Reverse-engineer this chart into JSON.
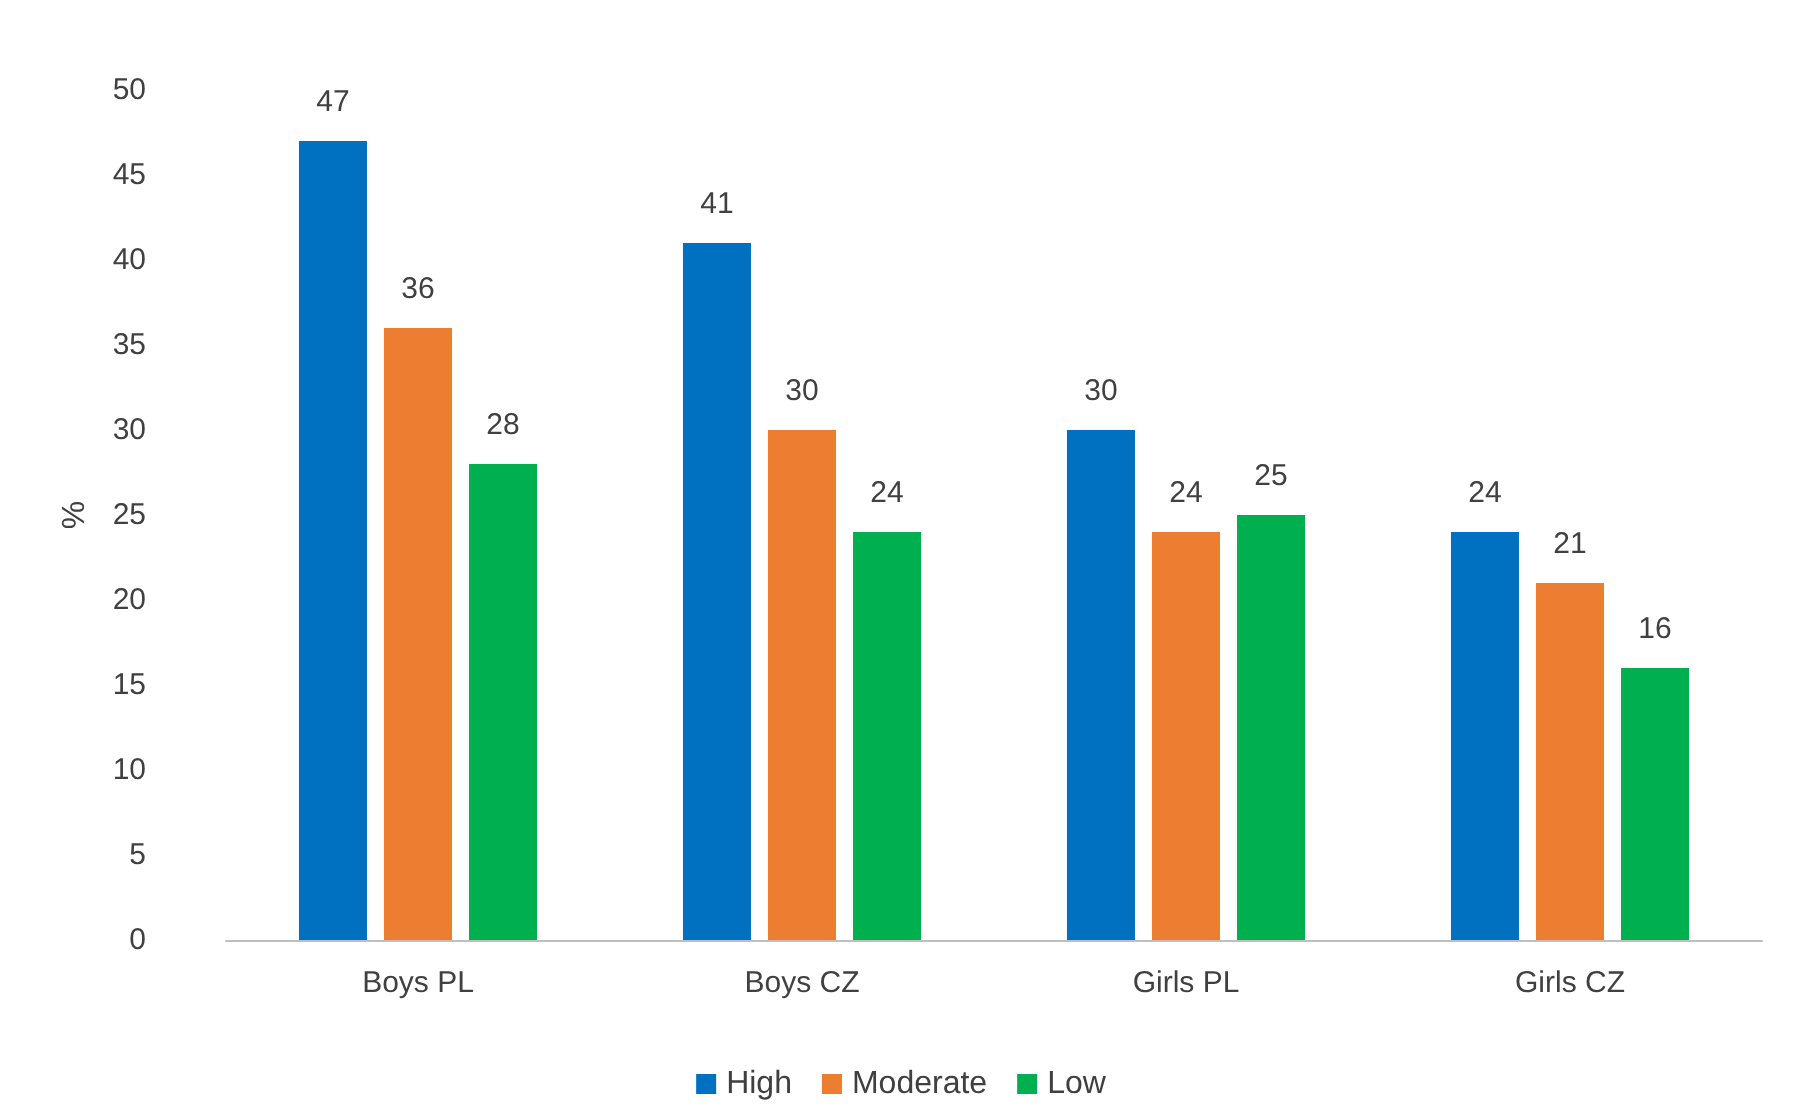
{
  "chart_data": {
    "type": "bar",
    "ylabel": "%",
    "categories": [
      "Boys PL",
      "Boys CZ",
      "Girls PL",
      "Girls CZ"
    ],
    "series": [
      {
        "name": "High",
        "color": "#0070c0",
        "values": [
          47,
          41,
          30,
          24
        ]
      },
      {
        "name": "Moderate",
        "color": "#ed7d31",
        "values": [
          36,
          30,
          24,
          21
        ]
      },
      {
        "name": "Low",
        "color": "#00b050",
        "values": [
          28,
          24,
          25,
          16
        ]
      }
    ],
    "ylim": [
      0,
      50
    ],
    "yticks": [
      0,
      5,
      10,
      15,
      20,
      25,
      30,
      35,
      40,
      45,
      50
    ],
    "grid": false,
    "legend": "bottom",
    "data_labels": true
  }
}
